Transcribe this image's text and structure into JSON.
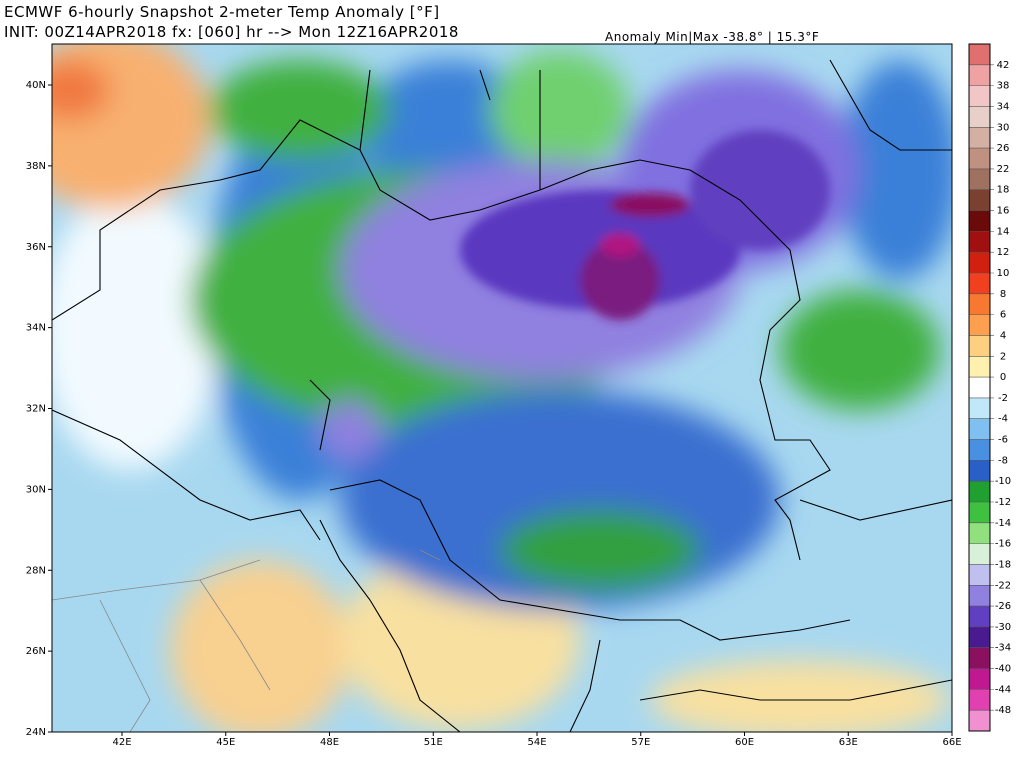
{
  "header": {
    "title": "ECMWF 6-hourly Snapshot 2-meter Temp Anomaly [°F]",
    "init": "INIT: 00Z14APR2018 fx: [060] hr --> Mon 12Z16APR2018",
    "anomaly": "Anomaly Min|Max -38.8° | 15.3°F"
  },
  "map": {
    "lat_labels": [
      "40N",
      "38N",
      "36N",
      "34N",
      "32N",
      "30N",
      "28N",
      "26N",
      "24N"
    ],
    "lon_labels": [
      "42E",
      "45E",
      "48E",
      "51E",
      "54E",
      "57E",
      "60E",
      "63E",
      "66E"
    ]
  },
  "colorbar": {
    "levels": [
      42,
      38,
      34,
      30,
      26,
      22,
      18,
      16,
      14,
      12,
      10,
      8,
      6,
      4,
      2,
      0,
      -2,
      -4,
      -6,
      -8,
      -10,
      -12,
      -14,
      -16,
      -18,
      -22,
      -26,
      -30,
      -34,
      -40,
      -44,
      -48
    ],
    "colors": [
      "#e07070",
      "#eea2a2",
      "#f2c6c6",
      "#e8d0c8",
      "#d4b0a4",
      "#c09080",
      "#a07060",
      "#7a4030",
      "#6a0a0a",
      "#a01010",
      "#d02010",
      "#f04020",
      "#f87830",
      "#fca050",
      "#fcd080",
      "#fff0b0",
      "#ffffff",
      "#c0e8f8",
      "#80c0f0",
      "#4a90e0",
      "#2860c8",
      "#20a030",
      "#40c040",
      "#90e080",
      "#d8f0d8",
      "#c0c0f0",
      "#9080e0",
      "#6040c0",
      "#4a1a90",
      "#8a1060",
      "#c01890",
      "#e040b0",
      "#f090d0"
    ]
  }
}
